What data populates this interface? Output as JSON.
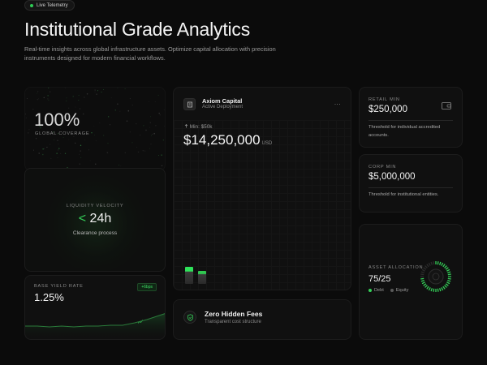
{
  "badge": {
    "label": "Live Telemetry"
  },
  "header": {
    "title": "Institutional Grade Analytics",
    "subtitle": "Real-time insights across global infrastructure assets. Optimize capital allocation with precision instruments designed for modern financial workflows."
  },
  "coverage": {
    "value": "100%",
    "label": "GLOBAL COVERAGE"
  },
  "velocity": {
    "label": "LIQUIDITY VELOCITY",
    "lt": "<",
    "value": "24h",
    "sub": "Clearance process"
  },
  "yield": {
    "label": "BASE YIELD RATE",
    "value": "1.25%",
    "pill": "+6bps",
    "pill_icon": "trend-up-icon"
  },
  "axiom": {
    "name": "Axiom Capital",
    "deployment": "Active Deployment",
    "more": "...",
    "min": "Min: $50k",
    "amount": "$14,250,000",
    "currency": "USD",
    "icon": "building-icon"
  },
  "fees": {
    "title": "Zero Hidden Fees",
    "sub": "Transparent cost structure",
    "icon": "shield-check-icon"
  },
  "retail": {
    "label": "RETAIL MIN",
    "amount": "$250,000",
    "desc": "Threshold for individual accredited accounts.",
    "icon": "wallet-icon"
  },
  "corp": {
    "label": "CORP MIN",
    "amount": "$5,000,000",
    "desc": "Threshold for institutional entities."
  },
  "alloc": {
    "label": "ASSET ALLOCATION",
    "value": "75/25",
    "legend": [
      {
        "name": "Debt",
        "color": "#34d058"
      },
      {
        "name": "Equity",
        "color": "#5a5a5a"
      }
    ],
    "debt_fraction": 0.75
  },
  "colors": {
    "accent": "#34d058",
    "bg": "#0b0b0b"
  }
}
